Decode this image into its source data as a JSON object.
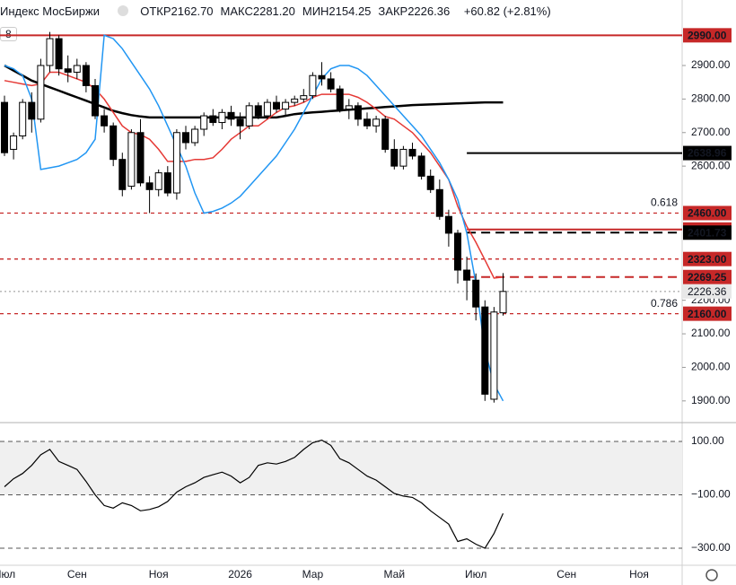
{
  "header": {
    "symbol": "Индекс МосБиржи",
    "fields": [
      {
        "name": "ОТКР",
        "value": "2162.70"
      },
      {
        "name": "МАКС",
        "value": "2281.20"
      },
      {
        "name": "МИН",
        "value": "2154.25"
      },
      {
        "name": "ЗАКР",
        "value": "2226.36"
      }
    ],
    "change": "+60.82 (+2.81%)",
    "interval": "8"
  },
  "chart_data": [
    {
      "type": "candlestick",
      "categories": [
        "Июл",
        null,
        null,
        null,
        null,
        null,
        null,
        null,
        "Сен",
        null,
        null,
        null,
        null,
        null,
        null,
        null,
        null,
        "Ноя",
        null,
        null,
        null,
        null,
        null,
        null,
        null,
        null,
        "2026",
        null,
        null,
        null,
        null,
        null,
        null,
        null,
        "Мар",
        null,
        null,
        null,
        null,
        null,
        null,
        null,
        null,
        "Май",
        null,
        null,
        null,
        null,
        null,
        null,
        null,
        null,
        "Июл",
        null,
        null,
        null,
        null,
        null,
        null,
        null,
        null,
        null,
        "Сен",
        null,
        null,
        null,
        null,
        null,
        null,
        null,
        "Ноя",
        null,
        null,
        null,
        null
      ],
      "open": [
        2790,
        2650,
        2690,
        2790,
        2740,
        2900,
        2980,
        2890,
        2880,
        2900,
        2840,
        2750,
        2720,
        2620,
        2540,
        2700,
        2550,
        2530,
        2580,
        2520,
        2700,
        2670,
        2710,
        2750,
        2730,
        2760,
        2740,
        2720,
        2780,
        2750,
        2790,
        2770,
        2790,
        2800,
        2810,
        2870,
        2860,
        2830,
        2770,
        2780,
        2740,
        2720,
        2740,
        2650,
        2600,
        2650,
        2630,
        2570,
        2530,
        2450,
        2400,
        2290,
        2260,
        2180,
        1905,
        2162.7,
        null,
        null,
        null,
        null,
        null,
        null,
        null,
        null,
        null,
        null,
        null,
        null,
        null,
        null,
        null,
        null,
        null,
        null,
        null
      ],
      "high": [
        2810,
        2700,
        2800,
        2820,
        2920,
        3000,
        2990,
        2930,
        2920,
        2910,
        2860,
        2770,
        2730,
        2640,
        2710,
        2740,
        2570,
        2590,
        2600,
        2710,
        2720,
        2720,
        2760,
        2770,
        2770,
        2780,
        2760,
        2790,
        2790,
        2800,
        2810,
        2800,
        2810,
        2830,
        2880,
        2910,
        2880,
        2840,
        2800,
        2790,
        2760,
        2750,
        2750,
        2680,
        2660,
        2670,
        2640,
        2590,
        2560,
        2470,
        2410,
        2330,
        2280,
        2200,
        2180,
        2281.2,
        null,
        null,
        null,
        null,
        null,
        null,
        null,
        null,
        null,
        null,
        null,
        null,
        null,
        null,
        null,
        null,
        null,
        null,
        null
      ],
      "low": [
        2630,
        2620,
        2680,
        2700,
        2730,
        2880,
        2870,
        2850,
        2860,
        2820,
        2740,
        2700,
        2600,
        2510,
        2530,
        2540,
        2460,
        2510,
        2510,
        2500,
        2650,
        2660,
        2690,
        2720,
        2710,
        2720,
        2680,
        2710,
        2740,
        2740,
        2760,
        2750,
        2780,
        2790,
        2800,
        2840,
        2820,
        2760,
        2740,
        2720,
        2710,
        2700,
        2640,
        2590,
        2590,
        2620,
        2560,
        2520,
        2440,
        2360,
        2250,
        2200,
        2140,
        1900,
        1895,
        2154.25,
        null,
        null,
        null,
        null,
        null,
        null,
        null,
        null,
        null,
        null,
        null,
        null,
        null,
        null,
        null,
        null,
        null,
        null,
        null
      ],
      "close": [
        2640,
        2690,
        2790,
        2740,
        2900,
        2980,
        2890,
        2880,
        2900,
        2840,
        2750,
        2720,
        2620,
        2530,
        2700,
        2550,
        2530,
        2580,
        2520,
        2700,
        2670,
        2710,
        2750,
        2730,
        2760,
        2740,
        2720,
        2780,
        2750,
        2790,
        2770,
        2790,
        2800,
        2810,
        2870,
        2860,
        2830,
        2770,
        2780,
        2740,
        2720,
        2740,
        2650,
        2600,
        2650,
        2630,
        2570,
        2530,
        2450,
        2400,
        2290,
        2260,
        2180,
        1920,
        2165,
        2226.36,
        null,
        null,
        null,
        null,
        null,
        null,
        null,
        null,
        null,
        null,
        null,
        null,
        null,
        null,
        null,
        null,
        null,
        null,
        null
      ],
      "up_color": "#ffffff",
      "down_color": "#000000",
      "lines": [
        {
          "color": "#000000",
          "width": 2.5,
          "values": [
            2900,
            2885,
            2870,
            2855,
            2845,
            2835,
            2825,
            2815,
            2805,
            2795,
            2785,
            2775,
            2765,
            2758,
            2752,
            2748,
            2745,
            2745,
            2745,
            2745,
            2745,
            2745,
            2745,
            2745,
            2745,
            2745,
            2745,
            2745,
            2745,
            2745,
            2745,
            2750,
            2755,
            2758,
            2760,
            2762,
            2764,
            2766,
            2768,
            2770,
            2772,
            2774,
            2776,
            2778,
            2780,
            2782,
            2783,
            2784,
            2785,
            2786,
            2787,
            2788,
            2789,
            2790,
            2790,
            2790,
            null,
            null,
            null,
            null,
            null,
            null,
            null,
            null,
            null,
            null,
            null,
            null,
            null,
            null,
            null,
            null,
            null,
            null,
            null
          ]
        },
        {
          "color": "#e53935",
          "width": 1.5,
          "values": [
            2855,
            2850,
            2845,
            2840,
            2845,
            2880,
            2880,
            2870,
            2860,
            2850,
            2830,
            2800,
            2760,
            2720,
            2700,
            2694,
            2680,
            2650,
            2614,
            2614,
            2614,
            2620,
            2620,
            2625,
            2650,
            2680,
            2700,
            2720,
            2720,
            2740,
            2760,
            2775,
            2780,
            2790,
            2805,
            2814,
            2814,
            2814,
            2814,
            2805,
            2790,
            2770,
            2748,
            2740,
            2720,
            2700,
            2670,
            2640,
            2600,
            2560,
            2480,
            2420,
            2373,
            2320,
            2266,
            2269.25,
            null,
            null,
            null,
            null,
            null,
            null,
            null,
            null,
            null,
            null,
            null,
            null,
            null,
            null,
            null,
            null,
            null,
            null,
            null
          ]
        },
        {
          "color": "#2196f3",
          "width": 1.5,
          "values": [
            2900,
            2890,
            2870,
            2800,
            2590,
            2595,
            2600,
            2610,
            2620,
            2640,
            2680,
            2990,
            2980,
            2950,
            2910,
            2870,
            2830,
            2780,
            2720,
            2660,
            2600,
            2520,
            2460,
            2465,
            2475,
            2490,
            2510,
            2540,
            2570,
            2600,
            2630,
            2670,
            2710,
            2760,
            2810,
            2860,
            2890,
            2900,
            2900,
            2890,
            2870,
            2840,
            2810,
            2780,
            2750,
            2720,
            2690,
            2650,
            2610,
            2560,
            2500,
            2400,
            2250,
            2050,
            1950,
            1900,
            null,
            null,
            null,
            null,
            null,
            null,
            null,
            null,
            null,
            null,
            null,
            null,
            null,
            null,
            null,
            null,
            null,
            null,
            null
          ]
        }
      ],
      "levels": [
        {
          "value": 2990,
          "label": "2990.00",
          "color": "#c62828",
          "style": "solid"
        },
        {
          "value": 2638.96,
          "label": "2638.96",
          "color": "#000000",
          "style": "solid-short"
        },
        {
          "value": 2460,
          "label": "2460.00",
          "color": "#c62828",
          "style": "dashed",
          "fib": "0.618"
        },
        {
          "value": 2410.97,
          "label": "2410.97",
          "color": "#c62828",
          "style": "solid-short"
        },
        {
          "value": 2401.73,
          "label": "2401.73",
          "color": "#000000",
          "style": "dashed-short"
        },
        {
          "value": 2323,
          "label": "2323.00",
          "color": "#c62828",
          "style": "dashed"
        },
        {
          "value": 2269.25,
          "label": "2269.25",
          "color": "#c62828",
          "style": "dashed-short"
        },
        {
          "value": 2226.36,
          "label": "2226.36",
          "color": "#b0b0b0",
          "style": "dotted"
        },
        {
          "value": 2160,
          "label": "2160.00",
          "color": "#c62828",
          "style": "dashed",
          "fib": "0.786"
        }
      ],
      "ylim": [
        1838,
        3015
      ],
      "yticks": [
        {
          "value": 1900,
          "label": "1900.00"
        },
        {
          "value": 2000,
          "label": "2000.00"
        },
        {
          "value": 2100,
          "label": "2100.00"
        },
        {
          "value": 2200,
          "label": "2200.00"
        },
        {
          "value": 2600,
          "label": "2600.00"
        },
        {
          "value": 2700,
          "label": "2700.00"
        },
        {
          "value": 2800,
          "label": "2800.00"
        },
        {
          "value": 2900,
          "label": "2900.00"
        }
      ]
    },
    {
      "type": "line",
      "color": "#000000",
      "values": [
        -70,
        -40,
        -20,
        10,
        50,
        70,
        25,
        10,
        -5,
        -50,
        -100,
        -140,
        -150,
        -130,
        -140,
        -160,
        -155,
        -145,
        -125,
        -90,
        -70,
        -55,
        -35,
        -25,
        -15,
        -30,
        -55,
        -35,
        10,
        20,
        15,
        25,
        40,
        70,
        95,
        105,
        85,
        35,
        20,
        -5,
        -30,
        -45,
        -70,
        -95,
        -105,
        -110,
        -130,
        -160,
        -185,
        -210,
        -275,
        -265,
        -285,
        -300,
        -245,
        -170
      ],
      "ylim": [
        -364,
        157
      ],
      "band": [
        -100,
        100
      ],
      "yticks": [
        {
          "value": 100,
          "label": "100.00"
        },
        {
          "value": -100,
          "label": "−100.00"
        },
        {
          "value": -300,
          "label": "−300.00"
        }
      ]
    }
  ]
}
